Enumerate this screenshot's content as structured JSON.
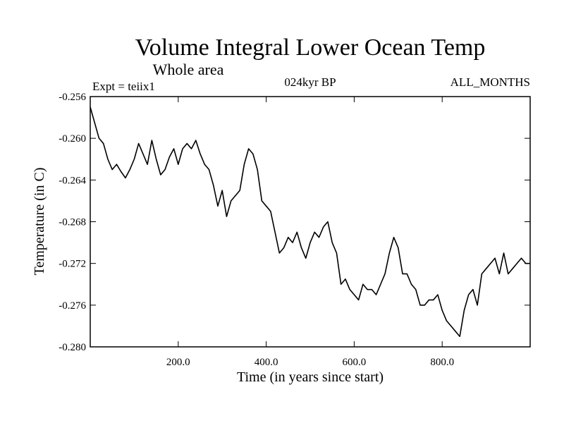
{
  "chart_data": {
    "type": "line",
    "title": "Volume Integral Lower Ocean Temp",
    "subtitle": "Whole area",
    "left_header": "Expt = teiix1",
    "center_header": "024kyr BP",
    "right_header": "ALL_MONTHS",
    "xlabel": "Time (in years since start)",
    "ylabel": "Temperature (in C)",
    "xlim": [
      0,
      1000
    ],
    "ylim": [
      -0.28,
      -0.256
    ],
    "x_ticks": [
      200,
      400,
      600,
      800
    ],
    "x_tick_labels": [
      "200.0",
      "400.0",
      "600.0",
      "800.0"
    ],
    "y_ticks": [
      -0.256,
      -0.26,
      -0.264,
      -0.268,
      -0.272,
      -0.276,
      -0.28
    ],
    "y_tick_labels": [
      "-0.256",
      "-0.260",
      "-0.264",
      "-0.268",
      "-0.272",
      "-0.276",
      "-0.280"
    ],
    "grid": false,
    "series": [
      {
        "color": "#000000",
        "x": [
          0,
          10,
          20,
          30,
          40,
          50,
          60,
          70,
          80,
          90,
          100,
          110,
          120,
          130,
          140,
          150,
          160,
          170,
          180,
          190,
          200,
          210,
          220,
          230,
          240,
          250,
          260,
          270,
          280,
          290,
          300,
          310,
          320,
          330,
          340,
          350,
          360,
          370,
          380,
          390,
          400,
          410,
          420,
          430,
          440,
          450,
          460,
          470,
          480,
          490,
          500,
          510,
          520,
          530,
          540,
          550,
          560,
          570,
          580,
          590,
          600,
          610,
          620,
          630,
          640,
          650,
          660,
          670,
          680,
          690,
          700,
          710,
          720,
          730,
          740,
          750,
          760,
          770,
          780,
          790,
          800,
          810,
          820,
          830,
          840,
          850,
          860,
          870,
          880,
          890,
          900,
          910,
          920,
          930,
          940,
          950,
          960,
          970,
          980,
          990,
          1000
        ],
        "y": [
          -0.257,
          -0.2585,
          -0.26,
          -0.2605,
          -0.262,
          -0.263,
          -0.2625,
          -0.2632,
          -0.2638,
          -0.263,
          -0.262,
          -0.2605,
          -0.2615,
          -0.2625,
          -0.2602,
          -0.262,
          -0.2635,
          -0.263,
          -0.2618,
          -0.261,
          -0.2625,
          -0.261,
          -0.2605,
          -0.261,
          -0.2602,
          -0.2615,
          -0.2625,
          -0.263,
          -0.2645,
          -0.2665,
          -0.265,
          -0.2675,
          -0.266,
          -0.2655,
          -0.265,
          -0.2625,
          -0.261,
          -0.2615,
          -0.263,
          -0.266,
          -0.2665,
          -0.267,
          -0.269,
          -0.271,
          -0.2705,
          -0.2695,
          -0.27,
          -0.269,
          -0.2705,
          -0.2715,
          -0.27,
          -0.269,
          -0.2695,
          -0.2685,
          -0.268,
          -0.27,
          -0.271,
          -0.274,
          -0.2735,
          -0.2745,
          -0.275,
          -0.2755,
          -0.274,
          -0.2745,
          -0.2745,
          -0.275,
          -0.274,
          -0.273,
          -0.271,
          -0.2695,
          -0.2705,
          -0.273,
          -0.273,
          -0.274,
          -0.2745,
          -0.276,
          -0.276,
          -0.2755,
          -0.2755,
          -0.275,
          -0.2765,
          -0.2775,
          -0.278,
          -0.2785,
          -0.279,
          -0.2765,
          -0.275,
          -0.2745,
          -0.276,
          -0.273,
          -0.2725,
          -0.272,
          -0.2715,
          -0.273,
          -0.271,
          -0.273,
          -0.2725,
          -0.272,
          -0.2715,
          -0.272,
          -0.272
        ]
      }
    ]
  }
}
